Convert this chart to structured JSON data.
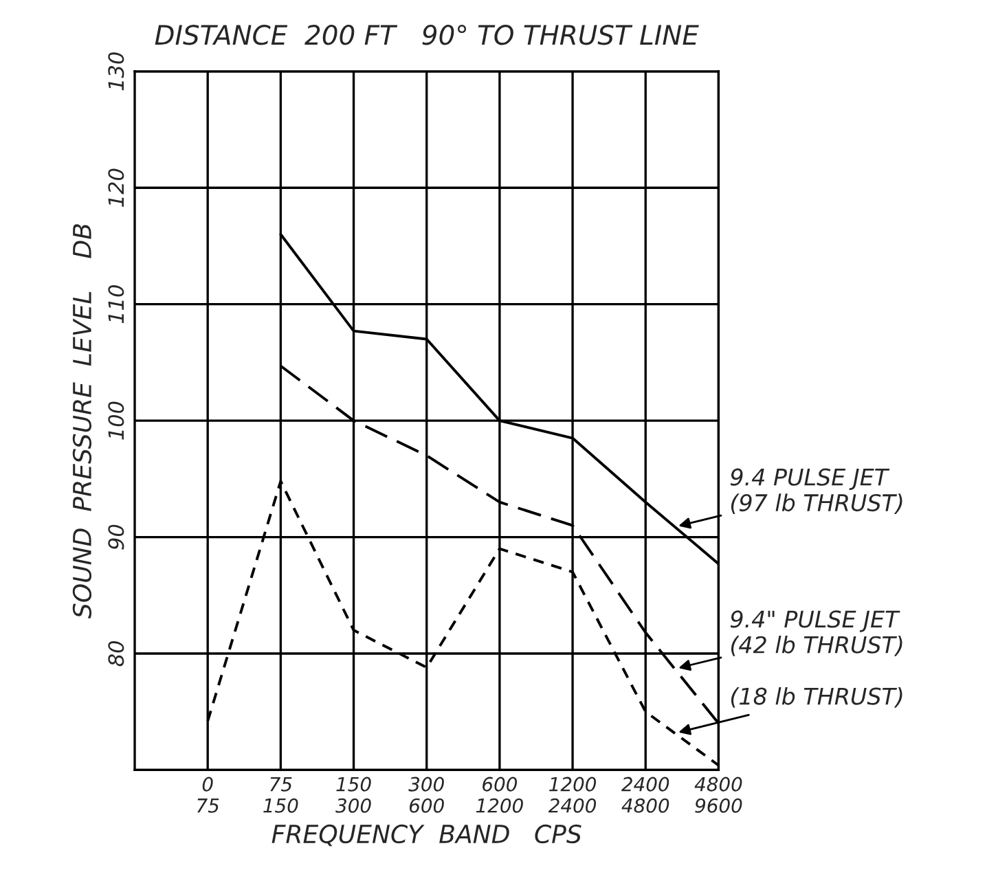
{
  "chart_data": {
    "type": "line",
    "title": "DISTANCE  200 FT   90° TO THRUST LINE",
    "xlabel": "FREQUENCY  BAND   CPS",
    "ylabel": "SOUND  PRESSURE  LEVEL    DB",
    "categories": [
      "0\n75",
      "75\n150",
      "150\n300",
      "300\n600",
      "600\n1200",
      "1200\n2400",
      "2400\n4800",
      "4800\n9600"
    ],
    "series": [
      {
        "name": "9.4 PULSE JET\n(97 lb THRUST)",
        "color": "#000000",
        "line_style": "solid",
        "values": [
          null,
          116,
          107.7,
          107,
          100,
          98.5,
          93,
          87.7
        ]
      },
      {
        "name": "9.4\" PULSE JET\n(42 lb THRUST)",
        "color": "#000000",
        "line_style": "dashed",
        "values": [
          null,
          104.7,
          100,
          97,
          93,
          91,
          81.8,
          74
        ]
      },
      {
        "name": "(18 lb THRUST)",
        "color": "#000000",
        "line_style": "dotted",
        "values": [
          74.2,
          94.8,
          82,
          78.8,
          89,
          87,
          75,
          70.4
        ]
      }
    ],
    "ylim": [
      70,
      130
    ],
    "yticks": [
      {
        "value": 70,
        "label": null
      },
      80,
      90,
      100,
      110,
      120,
      130
    ],
    "grid": true,
    "legend": false
  }
}
